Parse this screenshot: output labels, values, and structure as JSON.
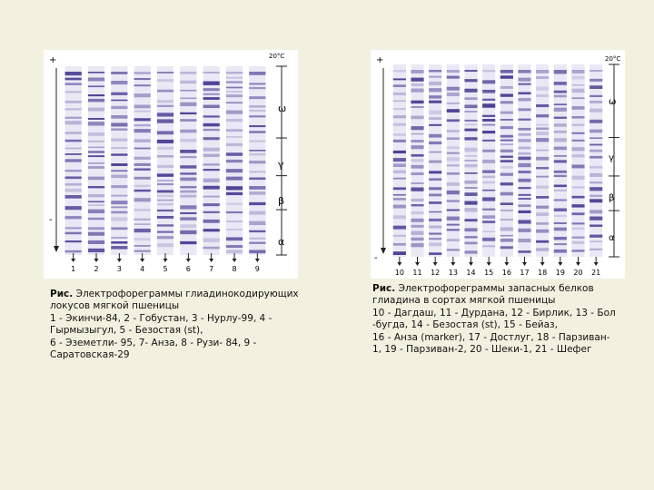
{
  "left_figure": {
    "temperature": "20°C",
    "plus": "+",
    "minus": "-",
    "zones": [
      "ω",
      "γ",
      "β",
      "α"
    ],
    "lane_labels": [
      "1",
      "2",
      "3",
      "4",
      "5",
      "6",
      "7",
      "8",
      "9"
    ],
    "caption_title": "Рис.",
    "caption_lines": [
      "Электрофореграммы глиадинокодирующих",
      "локусов мягкой пшеницы",
      "1 - Экинчи-84, 2 - Гобустан, 3 - Нурлу-99, 4 -",
      "Гырмызыгул, 5 - Безостая (st),",
      "6 - Эземетли- 95, 7- Анза, 8 - Рузи- 84, 9 -",
      "Саратовская-29"
    ]
  },
  "right_figure": {
    "temperature": "20°C",
    "plus": "+",
    "minus": "-",
    "zones": [
      "ω",
      "γ",
      "β",
      "α"
    ],
    "lane_labels": [
      "10",
      "11",
      "12",
      "13",
      "14",
      "15",
      "16",
      "17",
      "18",
      "19",
      "20",
      "21"
    ],
    "caption_title": "Рис.",
    "caption_lines": [
      "Электрофореграммы запасных белков",
      "глиадина в сортах мягкой пшеницы",
      "10 - Дагдаш, 11 - Дурдана, 12 - Бирлик, 13 - Бол",
      "-бугда, 14 - Безостая (st), 15 - Бейаз,",
      "16 - Анза (marker), 17 - Достлуг, 18 - Парзиван-",
      "1, 19 - Парзиван-2, 20 - Шеки-1, 21 - Шефег"
    ]
  },
  "colors": {
    "band": "#3a2f8a",
    "background": "#f2f1e0"
  }
}
